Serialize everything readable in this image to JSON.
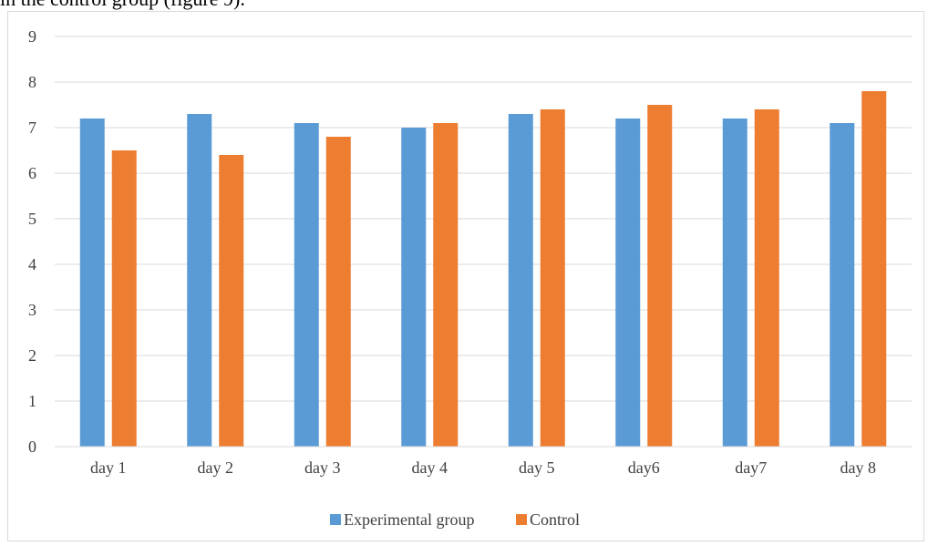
{
  "caption_text": "in the control group (figure 9).",
  "chart_data": {
    "type": "bar",
    "categories": [
      "day 1",
      "day 2",
      "day 3",
      "day 4",
      "day 5",
      "day6",
      "day7",
      "day 8"
    ],
    "series": [
      {
        "name": "Experimental group",
        "color": "#5b9bd5",
        "values": [
          7.2,
          7.3,
          7.1,
          7.0,
          7.3,
          7.2,
          7.2,
          7.1
        ]
      },
      {
        "name": "Control",
        "color": "#ed7d31",
        "values": [
          6.5,
          6.4,
          6.8,
          7.1,
          7.4,
          7.5,
          7.4,
          7.8
        ]
      }
    ],
    "y_ticks": [
      "0",
      "1",
      "2",
      "3",
      "4",
      "5",
      "6",
      "7",
      "8",
      "9"
    ],
    "ylim": [
      0,
      9
    ],
    "grid": true,
    "legend_position": "bottom"
  }
}
